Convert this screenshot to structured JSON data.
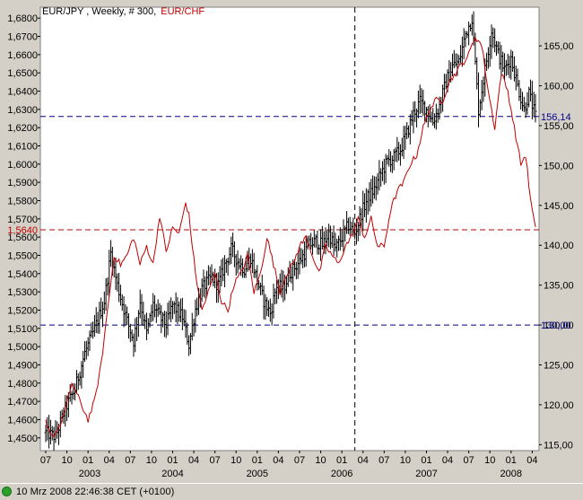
{
  "chart_data": {
    "type": "line",
    "title_parts": [
      {
        "text": "EUR/JPY , Weekly, # 300,",
        "color": "#000000"
      },
      {
        "text": "EUR/CHF",
        "color": "#c00000"
      }
    ],
    "left_axis": {
      "ylim": [
        1.443,
        1.686
      ],
      "ticks": [
        "1,4500",
        "1,4600",
        "1,4700",
        "1,4800",
        "1,4900",
        "1,5000",
        "1,5100",
        "1,5200",
        "1,5300",
        "1,5400",
        "1,5500",
        "1,5600",
        "1,5700",
        "1,5800",
        "1,5900",
        "1,6000",
        "1,6100",
        "1,6200",
        "1,6300",
        "1,6400",
        "1,6500",
        "1,6600",
        "1,6700",
        "1,6800"
      ],
      "tick_values": [
        1.45,
        1.46,
        1.47,
        1.48,
        1.49,
        1.5,
        1.51,
        1.52,
        1.53,
        1.54,
        1.55,
        1.56,
        1.57,
        1.58,
        1.59,
        1.6,
        1.61,
        1.62,
        1.63,
        1.64,
        1.65,
        1.66,
        1.67,
        1.68
      ],
      "marker_label": "1,5640",
      "marker_value": 1.564,
      "marker_color": "#c00000"
    },
    "right_axis": {
      "ylim": [
        114.25,
        169.85
      ],
      "ticks": [
        "115,00",
        "120,00",
        "125,00",
        "130,00",
        "135,00",
        "140,00",
        "145,00",
        "150,00",
        "155,00",
        "160,00",
        "165,00"
      ],
      "tick_values": [
        115,
        120,
        125,
        130,
        135,
        140,
        145,
        150,
        155,
        160,
        165
      ],
      "markers": [
        {
          "label": "156,14",
          "value": 156.14,
          "color": "#00008b"
        },
        {
          "label": "130,00",
          "value": 130.0,
          "color": "#00008b"
        }
      ]
    },
    "x_axis": {
      "month_ticks": [
        {
          "label": "07",
          "i": 0
        },
        {
          "label": "10",
          "i": 13
        },
        {
          "label": "01",
          "i": 26
        },
        {
          "label": "04",
          "i": 39
        },
        {
          "label": "07",
          "i": 52
        },
        {
          "label": "10",
          "i": 65
        },
        {
          "label": "01",
          "i": 78
        },
        {
          "label": "04",
          "i": 91
        },
        {
          "label": "07",
          "i": 104
        },
        {
          "label": "10",
          "i": 117
        },
        {
          "label": "01",
          "i": 130
        },
        {
          "label": "04",
          "i": 143
        },
        {
          "label": "07",
          "i": 156
        },
        {
          "label": "10",
          "i": 169
        },
        {
          "label": "01",
          "i": 182
        },
        {
          "label": "04",
          "i": 195
        },
        {
          "label": "07",
          "i": 208
        },
        {
          "label": "10",
          "i": 221
        },
        {
          "label": "01",
          "i": 234
        },
        {
          "label": "04",
          "i": 247
        },
        {
          "label": "07",
          "i": 260
        },
        {
          "label": "10",
          "i": 273
        },
        {
          "label": "01",
          "i": 286
        },
        {
          "label": "04",
          "i": 299
        }
      ],
      "year_labels": [
        {
          "label": "2003",
          "i": 27
        },
        {
          "label": "2004",
          "i": 78
        },
        {
          "label": "2005",
          "i": 130
        },
        {
          "label": "2006",
          "i": 182
        },
        {
          "label": "2007",
          "i": 234
        },
        {
          "label": "2008",
          "i": 286
        }
      ],
      "n_bars": 302
    },
    "crosshair": {
      "i": 190
    },
    "eurjpy_anchors": [
      [
        0,
        116.5
      ],
      [
        6,
        116.0
      ],
      [
        12,
        119.5
      ],
      [
        18,
        122.0
      ],
      [
        24,
        126.5
      ],
      [
        30,
        129.5
      ],
      [
        36,
        133.0
      ],
      [
        40,
        139.0
      ],
      [
        44,
        135.0
      ],
      [
        50,
        130.5
      ],
      [
        54,
        128.0
      ],
      [
        58,
        133.0
      ],
      [
        62,
        129.0
      ],
      [
        66,
        132.5
      ],
      [
        70,
        131.0
      ],
      [
        74,
        130.0
      ],
      [
        78,
        132.5
      ],
      [
        84,
        131.0
      ],
      [
        88,
        127.5
      ],
      [
        92,
        132.0
      ],
      [
        96,
        134.5
      ],
      [
        102,
        136.0
      ],
      [
        106,
        135.0
      ],
      [
        110,
        137.5
      ],
      [
        114,
        139.5
      ],
      [
        118,
        138.0
      ],
      [
        122,
        137.0
      ],
      [
        126,
        138.5
      ],
      [
        130,
        135.5
      ],
      [
        134,
        133.0
      ],
      [
        138,
        131.5
      ],
      [
        142,
        135.0
      ],
      [
        146,
        134.5
      ],
      [
        150,
        136.5
      ],
      [
        156,
        138.0
      ],
      [
        162,
        140.0
      ],
      [
        166,
        140.5
      ],
      [
        170,
        140.0
      ],
      [
        174,
        141.5
      ],
      [
        178,
        139.5
      ],
      [
        182,
        141.0
      ],
      [
        186,
        142.5
      ],
      [
        190,
        141.5
      ],
      [
        194,
        144.0
      ],
      [
        198,
        146.0
      ],
      [
        202,
        147.0
      ],
      [
        206,
        149.0
      ],
      [
        210,
        150.5
      ],
      [
        214,
        151.0
      ],
      [
        218,
        152.0
      ],
      [
        222,
        154.0
      ],
      [
        226,
        156.5
      ],
      [
        230,
        158.0
      ],
      [
        234,
        157.0
      ],
      [
        238,
        155.5
      ],
      [
        242,
        157.5
      ],
      [
        246,
        160.5
      ],
      [
        250,
        162.5
      ],
      [
        254,
        163.0
      ],
      [
        258,
        166.5
      ],
      [
        262,
        168.5
      ],
      [
        266,
        157.0
      ],
      [
        270,
        162.0
      ],
      [
        274,
        167.0
      ],
      [
        278,
        164.0
      ],
      [
        282,
        162.0
      ],
      [
        286,
        163.5
      ],
      [
        290,
        160.0
      ],
      [
        294,
        157.0
      ],
      [
        297,
        159.0
      ],
      [
        301,
        156.14
      ]
    ],
    "eurchf_anchors": [
      [
        0,
        1.459
      ],
      [
        4,
        1.451
      ],
      [
        8,
        1.455
      ],
      [
        12,
        1.465
      ],
      [
        16,
        1.48
      ],
      [
        22,
        1.468
      ],
      [
        26,
        1.46
      ],
      [
        30,
        1.47
      ],
      [
        34,
        1.49
      ],
      [
        38,
        1.52
      ],
      [
        42,
        1.55
      ],
      [
        46,
        1.545
      ],
      [
        50,
        1.55
      ],
      [
        54,
        1.56
      ],
      [
        58,
        1.545
      ],
      [
        62,
        1.555
      ],
      [
        66,
        1.545
      ],
      [
        70,
        1.572
      ],
      [
        74,
        1.552
      ],
      [
        78,
        1.565
      ],
      [
        82,
        1.562
      ],
      [
        86,
        1.579
      ],
      [
        88,
        1.572
      ],
      [
        92,
        1.54
      ],
      [
        96,
        1.52
      ],
      [
        100,
        1.53
      ],
      [
        104,
        1.54
      ],
      [
        108,
        1.525
      ],
      [
        112,
        1.52
      ],
      [
        116,
        1.535
      ],
      [
        120,
        1.54
      ],
      [
        124,
        1.55
      ],
      [
        128,
        1.53
      ],
      [
        132,
        1.54
      ],
      [
        136,
        1.56
      ],
      [
        140,
        1.545
      ],
      [
        144,
        1.53
      ],
      [
        148,
        1.54
      ],
      [
        152,
        1.545
      ],
      [
        156,
        1.555
      ],
      [
        160,
        1.56
      ],
      [
        164,
        1.55
      ],
      [
        168,
        1.54
      ],
      [
        172,
        1.555
      ],
      [
        176,
        1.55
      ],
      [
        180,
        1.545
      ],
      [
        184,
        1.555
      ],
      [
        188,
        1.56
      ],
      [
        192,
        1.57
      ],
      [
        196,
        1.56
      ],
      [
        200,
        1.57
      ],
      [
        204,
        1.555
      ],
      [
        208,
        1.555
      ],
      [
        212,
        1.575
      ],
      [
        216,
        1.585
      ],
      [
        220,
        1.59
      ],
      [
        224,
        1.6
      ],
      [
        228,
        1.605
      ],
      [
        232,
        1.62
      ],
      [
        236,
        1.63
      ],
      [
        240,
        1.635
      ],
      [
        244,
        1.635
      ],
      [
        248,
        1.645
      ],
      [
        252,
        1.65
      ],
      [
        256,
        1.655
      ],
      [
        260,
        1.66
      ],
      [
        264,
        1.67
      ],
      [
        268,
        1.665
      ],
      [
        272,
        1.64
      ],
      [
        276,
        1.62
      ],
      [
        280,
        1.65
      ],
      [
        284,
        1.64
      ],
      [
        288,
        1.62
      ],
      [
        292,
        1.6
      ],
      [
        295,
        1.605
      ],
      [
        298,
        1.58
      ],
      [
        301,
        1.564
      ]
    ],
    "colors": {
      "eurjpy": "#000000",
      "eurchf": "#c00000",
      "grid_blue": "#00008b",
      "grid_red": "#c00000",
      "axis_text": "#000000",
      "marker_text": "#00008b"
    }
  },
  "statusbar": {
    "timestamp": "10 Mrz 2008 22:46:38  CET (+0100)"
  }
}
